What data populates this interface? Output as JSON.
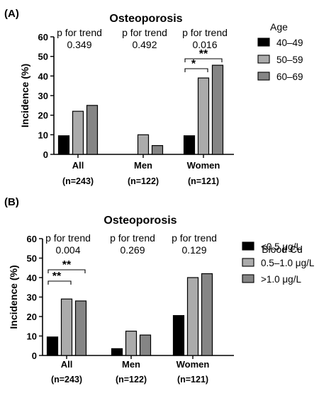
{
  "chart_data": [
    {
      "panel_label": "(A)",
      "type": "bar",
      "title": "Osteoporosis",
      "ylabel": "Incidence (%)",
      "ylim": [
        0,
        60
      ],
      "yticks": [
        0,
        10,
        20,
        30,
        40,
        50,
        60
      ],
      "legend_title": "Age",
      "legend_position": "right",
      "groups": [
        {
          "label": "All",
          "n": "(n=243)",
          "trend_label": "p for trend",
          "trend_p": "0.349"
        },
        {
          "label": "Men",
          "n": "(n=122)",
          "trend_label": "p for trend",
          "trend_p": "0.492"
        },
        {
          "label": "Women",
          "n": "(n=121)",
          "trend_label": "p for trend",
          "trend_p": "0.016"
        }
      ],
      "series": [
        {
          "name": "40–49",
          "color": "#000000",
          "values": [
            9.5,
            0,
            9.5
          ]
        },
        {
          "name": "50–59",
          "color": "#ababab",
          "values": [
            22,
            10,
            39
          ]
        },
        {
          "name": "60–69",
          "color": "#858585",
          "values": [
            25,
            4.5,
            45.5
          ]
        }
      ],
      "significance": [
        {
          "group": 2,
          "from": 0,
          "to": 1,
          "label": "*"
        },
        {
          "group": 2,
          "from": 0,
          "to": 2,
          "label": "**"
        }
      ]
    },
    {
      "panel_label": "(B)",
      "type": "bar",
      "title": "Osteoporosis",
      "ylabel": "Incidence (%)",
      "ylim": [
        0,
        60
      ],
      "yticks": [
        0,
        10,
        20,
        30,
        40,
        50,
        60
      ],
      "legend_title": "Blood  Cd",
      "legend_position": "right",
      "groups": [
        {
          "label": "All",
          "n": "(n=243)",
          "trend_label": "p for trend",
          "trend_p": "0.004"
        },
        {
          "label": "Men",
          "n": "(n=122)",
          "trend_label": "p for trend",
          "trend_p": "0.269"
        },
        {
          "label": "Women",
          "n": "(n=121)",
          "trend_label": "p for trend",
          "trend_p": "0.129"
        }
      ],
      "series": [
        {
          "name": "<0.5 μg/L",
          "color": "#000000",
          "values": [
            9.5,
            3.5,
            20.5
          ]
        },
        {
          "name": "0.5–1.0 μg/L",
          "color": "#ababab",
          "values": [
            29,
            12.5,
            40
          ]
        },
        {
          "name": ">1.0 μg/L",
          "color": "#858585",
          "values": [
            28,
            10.5,
            42
          ]
        }
      ],
      "significance": [
        {
          "group": 0,
          "from": 0,
          "to": 1,
          "label": "**"
        },
        {
          "group": 0,
          "from": 0,
          "to": 2,
          "label": "**"
        }
      ]
    }
  ]
}
